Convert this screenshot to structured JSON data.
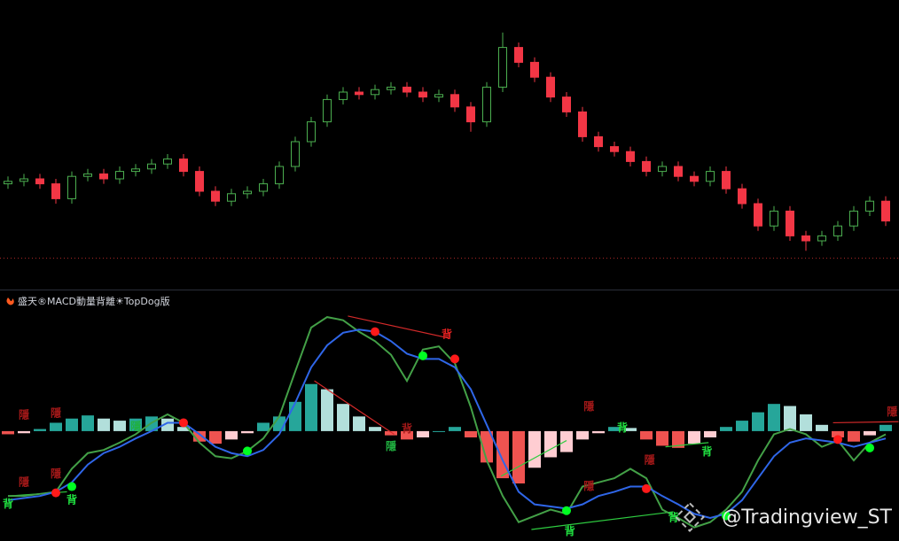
{
  "chart_data": [
    {
      "type": "candlestick",
      "ylim": [
        0,
        100
      ],
      "open": [
        33,
        34,
        35,
        33,
        27,
        36,
        37,
        35,
        38,
        39,
        41,
        43,
        38,
        30,
        26,
        29,
        30,
        33,
        40,
        50,
        58,
        67,
        70,
        69,
        71,
        72,
        70,
        68,
        69,
        64,
        58,
        72,
        88,
        82,
        76,
        68,
        62,
        52,
        48,
        46,
        42,
        38,
        40,
        36,
        34,
        38,
        31,
        25,
        16,
        22,
        12,
        10,
        12,
        16,
        22,
        26
      ],
      "high": [
        36,
        37,
        37,
        35,
        38,
        39,
        39,
        40,
        41,
        43,
        45,
        45,
        40,
        32,
        31,
        32,
        35,
        42,
        52,
        60,
        69,
        72,
        72,
        73,
        74,
        74,
        72,
        71,
        71,
        66,
        74,
        94,
        90,
        84,
        78,
        70,
        64,
        54,
        50,
        48,
        44,
        42,
        42,
        38,
        40,
        40,
        33,
        27,
        24,
        24,
        14,
        14,
        18,
        24,
        28,
        28
      ],
      "low": [
        31,
        32,
        31,
        25,
        25,
        34,
        33,
        33,
        36,
        37,
        39,
        36,
        28,
        24,
        24,
        27,
        28,
        31,
        38,
        48,
        56,
        65,
        67,
        67,
        69,
        68,
        66,
        66,
        62,
        54,
        56,
        70,
        80,
        74,
        66,
        60,
        50,
        46,
        44,
        40,
        36,
        36,
        34,
        32,
        32,
        29,
        23,
        14,
        14,
        10,
        6,
        8,
        10,
        14,
        20,
        16
      ],
      "close": [
        34,
        35,
        33,
        27,
        36,
        37,
        35,
        38,
        39,
        41,
        43,
        38,
        30,
        26,
        29,
        30,
        33,
        40,
        50,
        58,
        67,
        70,
        69,
        71,
        72,
        70,
        68,
        69,
        64,
        58,
        72,
        88,
        82,
        76,
        68,
        62,
        52,
        48,
        46,
        42,
        38,
        40,
        36,
        34,
        38,
        31,
        25,
        16,
        22,
        12,
        10,
        12,
        16,
        22,
        26,
        18
      ],
      "up_color": "#4caf50",
      "down_color": "#f23645",
      "reference_line": 3,
      "reference_color": "#b22a2a"
    },
    {
      "type": "macd",
      "title": "盛天®MACD動量背離☀TopDog版",
      "watermark": "@Tradingview_ST",
      "ylim": [
        -105,
        115
      ],
      "series": [
        {
          "name": "DIF",
          "color": "#43a047",
          "values": [
            -62,
            -62,
            -60,
            -58,
            -36,
            -21,
            -18,
            -11,
            -3,
            8,
            16,
            8,
            -11,
            -24,
            -26,
            -19,
            -7,
            14,
            57,
            99,
            109,
            106,
            95,
            86,
            73,
            48,
            78,
            81,
            65,
            23,
            -28,
            -62,
            -87,
            -81,
            -75,
            -79,
            -53,
            -49,
            -45,
            -36,
            -45,
            -75,
            -83,
            -92,
            -87,
            -75,
            -58,
            -28,
            -3,
            2,
            -3,
            -15,
            -9,
            -28,
            -11,
            -3
          ]
        },
        {
          "name": "DEA",
          "color": "#2f66e8",
          "values": [
            -66,
            -64,
            -62,
            -58,
            -49,
            -32,
            -21,
            -15,
            -7,
            0,
            8,
            8,
            -3,
            -15,
            -21,
            -24,
            -18,
            -3,
            27,
            61,
            82,
            94,
            97,
            95,
            86,
            74,
            69,
            69,
            61,
            40,
            6,
            -28,
            -58,
            -70,
            -72,
            -74,
            -70,
            -62,
            -58,
            -53,
            -53,
            -62,
            -70,
            -79,
            -83,
            -79,
            -66,
            -45,
            -24,
            -11,
            -7,
            -9,
            -11,
            -15,
            -11,
            -7
          ]
        }
      ],
      "histogram": [
        -3,
        -2,
        2,
        8,
        12,
        15,
        12,
        10,
        12,
        14,
        12,
        4,
        -10,
        -12,
        -8,
        -2,
        8,
        14,
        28,
        45,
        40,
        26,
        14,
        4,
        -4,
        -8,
        -6,
        0,
        4,
        -6,
        -30,
        -45,
        -50,
        -35,
        -25,
        -20,
        -8,
        -2,
        4,
        3,
        -8,
        -14,
        -16,
        -12,
        -6,
        4,
        10,
        18,
        26,
        24,
        16,
        6,
        -6,
        -10,
        -4,
        6
      ],
      "histogram_colors": [
        "#26a69a",
        "#b2dfdb",
        "#ef5350",
        "#ffcdd2"
      ],
      "markers": [
        {
          "x": 4,
          "y": -53,
          "color": "#00ff22"
        },
        {
          "x": 3,
          "y": -59,
          "color": "#ff1a1a"
        },
        {
          "x": 11,
          "y": 8,
          "color": "#ff1a1a"
        },
        {
          "x": 15,
          "y": -19,
          "color": "#00ff22"
        },
        {
          "x": 23,
          "y": 95,
          "color": "#ff1a1a"
        },
        {
          "x": 26,
          "y": 72,
          "color": "#00ff22"
        },
        {
          "x": 28,
          "y": 69,
          "color": "#ff1a1a"
        },
        {
          "x": 35,
          "y": -76,
          "color": "#00ff22"
        },
        {
          "x": 40,
          "y": -55,
          "color": "#ff1a1a"
        },
        {
          "x": 45,
          "y": -81,
          "color": "#00ff22"
        },
        {
          "x": 52,
          "y": -8,
          "color": "#ff1a1a"
        },
        {
          "x": 54,
          "y": -16,
          "color": "#00ff22"
        }
      ],
      "divergence_lines": [
        {
          "color": "#d42a2a",
          "x": [
            21.3,
            27.6
          ],
          "y": [
            110,
            89
          ]
        },
        {
          "color": "#d42a2a",
          "x": [
            19.2,
            24.2
          ],
          "y": [
            48,
            -3
          ]
        },
        {
          "color": "#d42a2a",
          "x": [
            51.7,
            55.8
          ],
          "y": [
            8,
            9
          ]
        },
        {
          "color": "#2ecc40",
          "x": [
            0,
            3.7
          ],
          "y": [
            -62,
            -58
          ]
        },
        {
          "color": "#2ecc40",
          "x": [
            30.9,
            35
          ],
          "y": [
            -43,
            -9
          ]
        },
        {
          "color": "#2ecc40",
          "x": [
            32.8,
            41.7
          ],
          "y": [
            -94,
            -77
          ]
        },
        {
          "color": "#2ecc40",
          "x": [
            41.2,
            43.9
          ],
          "y": [
            -15,
            -11
          ]
        }
      ],
      "annotations": [
        {
          "text": "背",
          "x": 0,
          "y": -70,
          "color": "#20e040"
        },
        {
          "text": "背",
          "x": 4,
          "y": -66,
          "color": "#20e040"
        },
        {
          "text": "隱",
          "x": 1,
          "y": 15,
          "color": "#a01818"
        },
        {
          "text": "隱",
          "x": 3,
          "y": 17,
          "color": "#a01818"
        },
        {
          "text": "隱",
          "x": 1,
          "y": -49,
          "color": "#a01818"
        },
        {
          "text": "隱",
          "x": 3,
          "y": -41,
          "color": "#a01818"
        },
        {
          "text": "隱",
          "x": 8,
          "y": 4,
          "color": "#20b040"
        },
        {
          "text": "背",
          "x": 27.5,
          "y": 92,
          "color": "#e02020"
        },
        {
          "text": "背",
          "x": 25,
          "y": 2,
          "color": "#a01818"
        },
        {
          "text": "隱",
          "x": 24,
          "y": -15,
          "color": "#20b040"
        },
        {
          "text": "隱",
          "x": 36.4,
          "y": 23,
          "color": "#a01818"
        },
        {
          "text": "背",
          "x": 38.5,
          "y": 3,
          "color": "#20e040"
        },
        {
          "text": "背",
          "x": 43.8,
          "y": -20,
          "color": "#20e040"
        },
        {
          "text": "隱",
          "x": 36.4,
          "y": -53,
          "color": "#a01818"
        },
        {
          "text": "隱",
          "x": 40.2,
          "y": -28,
          "color": "#a01818"
        },
        {
          "text": "背",
          "x": 35.2,
          "y": -96,
          "color": "#20e040"
        },
        {
          "text": "背",
          "x": 41.7,
          "y": -83,
          "color": "#20e040"
        },
        {
          "text": "隱",
          "x": 55.4,
          "y": 18,
          "color": "#a01818"
        }
      ]
    }
  ]
}
